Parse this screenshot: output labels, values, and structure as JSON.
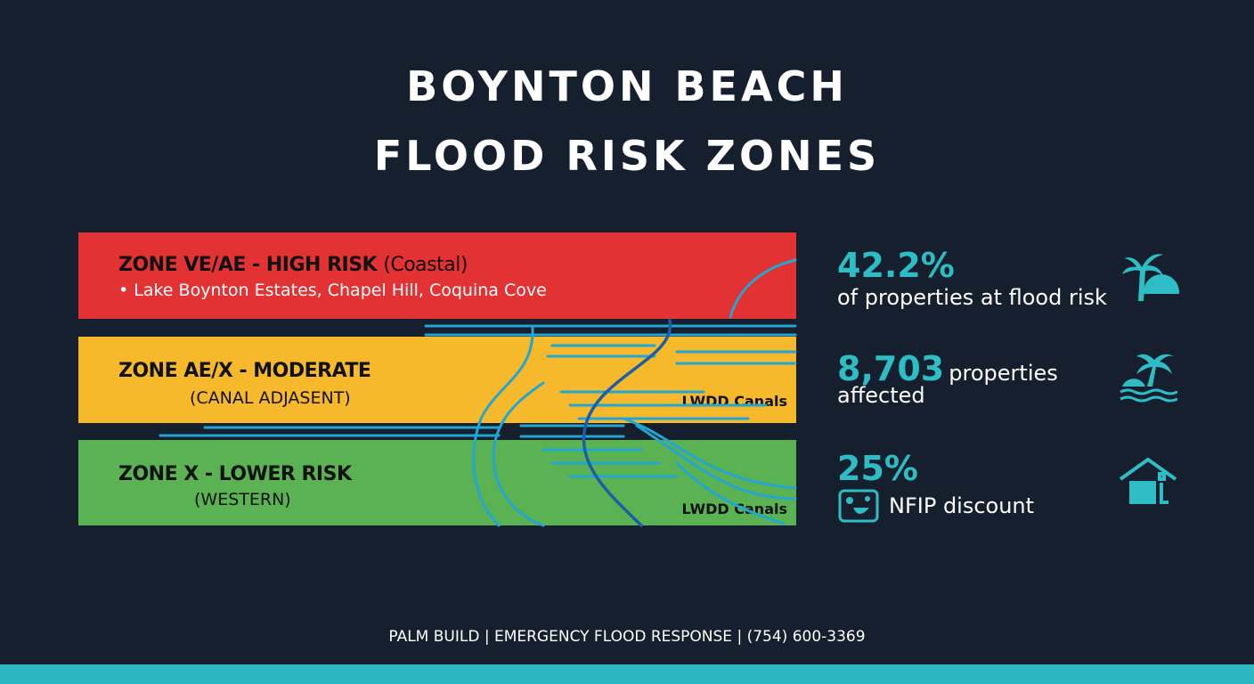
{
  "title": {
    "line1": "BOYNTON BEACH",
    "line2": "FLOOD RISK ZONES"
  },
  "zones": [
    {
      "name": "ZONE VE/AE - HIGH RISK",
      "qualifier": "(Coastal)",
      "detail": "• Lake Boynton Estates, Chapel Hill, Coquina Cove",
      "color": "#e23234"
    },
    {
      "name": "ZONE AE/X - MODERATE",
      "detail": "(CANAL ADJASENT)",
      "canal_label": "LWDD Canals",
      "color": "#f6b92b"
    },
    {
      "name": "ZONE X - LOWER RISK",
      "detail": "(WESTERN)",
      "canal_label": "LWDD Canals",
      "color": "#5bb253"
    }
  ],
  "stats": [
    {
      "value": "42.2%",
      "label": "of properties at flood risk",
      "icon": "palm-trees-icon"
    },
    {
      "value": "8,703",
      "label_inline": "properties",
      "label": "affected",
      "icon": "island-waves-icon"
    },
    {
      "value": "25%",
      "label": "NFIP discount",
      "icon": "house-icon",
      "badge_icon": "insurance-badge-icon"
    }
  ],
  "footer": "PALM BUILD | EMERGENCY FLOOD RESPONSE | (754) 600-3369",
  "colors": {
    "background": "#161f2e",
    "accent": "#2ebdc4"
  }
}
